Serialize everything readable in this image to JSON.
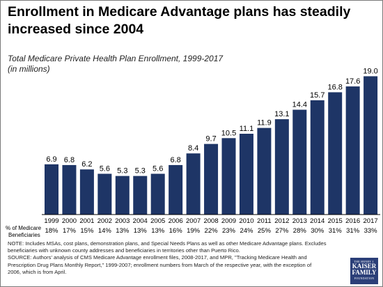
{
  "title": "Enrollment in Medicare Advantage plans has steadily increased since 2004",
  "subtitle_line1": "Total Medicare Private Health Plan Enrollment, 1999-2017",
  "subtitle_line2": "(in millions)",
  "pct_label_line1": "% of Medicare",
  "pct_label_line2": "Beneficiaries",
  "notes": [
    "NOTE: Includes MSAs, cost plans, demonstration plans, and Special Needs Plans as well as other Medicare Advantage plans. Excludes",
    "beneficiaries with unknown county addresses and beneficiaries in territories other than Puerto Rico.",
    "SOURCE: Authors' analysis of CMS Medicare Advantage enrollment files, 2008-2017, and MPR, \"Tracking Medicare Health and",
    "Prescription Drug Plans Monthly Report,\" 1999-2007; enrollment numbers from March of the respective year, with the exception of",
    "2006, which is from April."
  ],
  "logo": {
    "line1": "THE HENRY J.",
    "line2": "KAISER",
    "line3": "FAMILY",
    "line4": "FOUNDATION",
    "color": "#2b3f78"
  },
  "chart_data": {
    "type": "bar",
    "title": "Total Medicare Private Health Plan Enrollment, 1999-2017",
    "ylabel": "(in millions)",
    "categories": [
      "1999",
      "2000",
      "2001",
      "2002",
      "2003",
      "2004",
      "2005",
      "2006",
      "2007",
      "2008",
      "2009",
      "2010",
      "2011",
      "2012",
      "2013",
      "2014",
      "2015",
      "2016",
      "2017"
    ],
    "values": [
      6.9,
      6.8,
      6.2,
      5.6,
      5.3,
      5.3,
      5.6,
      6.8,
      8.4,
      9.7,
      10.5,
      11.1,
      11.9,
      13.1,
      14.4,
      15.7,
      16.8,
      17.6,
      19.0
    ],
    "value_labels": [
      "6.9",
      "6.8",
      "6.2",
      "5.6",
      "5.3",
      "5.3",
      "5.6",
      "6.8",
      "8.4",
      "9.7",
      "10.5",
      "11.1",
      "11.9",
      "13.1",
      "14.4",
      "15.7",
      "16.8",
      "17.6",
      "19.0"
    ],
    "pct_beneficiaries": [
      "18%",
      "17%",
      "15%",
      "14%",
      "13%",
      "13%",
      "13%",
      "16%",
      "19%",
      "22%",
      "23%",
      "24%",
      "25%",
      "27%",
      "28%",
      "30%",
      "31%",
      "31%",
      "33%"
    ],
    "bar_color": "#1e3566",
    "ylim": [
      0,
      20
    ],
    "grid": false,
    "legend": "none"
  }
}
